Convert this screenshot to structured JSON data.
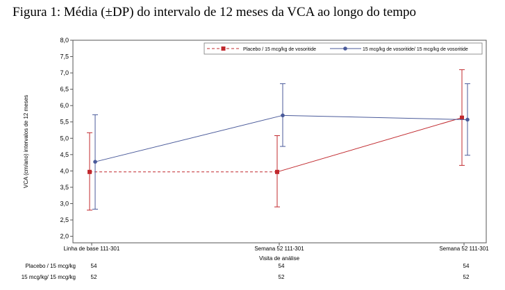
{
  "title": "Figura 1: Média (±DP) do intervalo de 12 meses da VCA ao longo do tempo",
  "chart_data": {
    "type": "line",
    "title": "Figura 1: Média (±DP) do intervalo de 12 meses da VCA ao longo do tempo",
    "xlabel": "Visita de análise",
    "ylabel": "VCA (cm/ano) intervalos de 12 meses",
    "categories": [
      "Linha de base 111-301",
      "Semana 52 111-301",
      "Semana 52 111-301"
    ],
    "ylim": [
      1.8,
      8.0
    ],
    "yticks": [
      "2,0",
      "2,5",
      "3,0",
      "3,5",
      "4,0",
      "4,5",
      "5,0",
      "5,5",
      "6,0",
      "6,5",
      "7,0",
      "7,5",
      "8,0"
    ],
    "ytick_values": [
      2.0,
      2.5,
      3.0,
      3.5,
      4.0,
      4.5,
      5.0,
      5.5,
      6.0,
      6.5,
      7.0,
      7.5,
      8.0
    ],
    "grid": false,
    "legend_position": "top-right",
    "series": [
      {
        "name": "Placebo / 15 mcg/kg de vosoritide",
        "color": "#c0282d",
        "marker": "square",
        "values": [
          3.97,
          3.97,
          5.63
        ],
        "sd_low": [
          2.8,
          2.9,
          4.17
        ],
        "sd_high": [
          5.17,
          5.08,
          7.1
        ],
        "dashed_segments": [
          0
        ]
      },
      {
        "name": "15 mcg/kg de vosoritide/ 15 mcg/kg de vosoritide",
        "color": "#4a5a9a",
        "marker": "circle",
        "values": [
          4.28,
          5.7,
          5.57
        ],
        "sd_low": [
          2.83,
          4.75,
          4.48
        ],
        "sd_high": [
          5.72,
          6.67,
          6.67
        ],
        "dashed_segments": []
      }
    ],
    "n_table": {
      "rows": [
        {
          "label": "Placebo / 15 mcg/kg",
          "values": [
            "54",
            "54",
            "54"
          ]
        },
        {
          "label": "15 mcg/kg/ 15 mcg/kg",
          "values": [
            "52",
            "52",
            "52"
          ]
        }
      ]
    }
  }
}
